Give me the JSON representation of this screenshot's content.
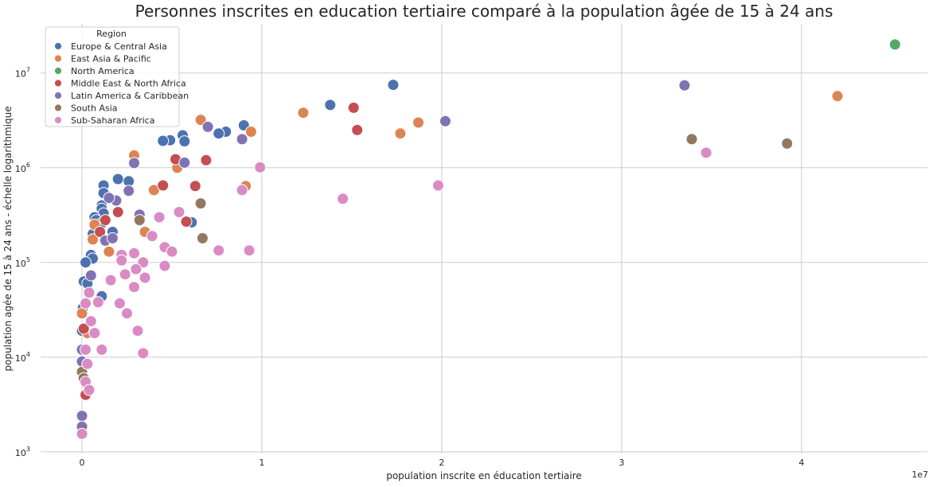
{
  "chart_data": {
    "type": "scatter",
    "title": "Personnes inscrites en education tertiaire comparé à la population âgée de 15 à 24 ans",
    "xlabel": "population inscrite en éducation tertiaire",
    "ylabel": "population agée de 15 à 24 ans - échelle logarithmique",
    "x_offset_label": "1e7",
    "x_scale": "linear",
    "y_scale": "log",
    "xlim": [
      -2300000,
      47000000
    ],
    "ylim": [
      960,
      33000000
    ],
    "grid": true,
    "legend": {
      "title": "Region",
      "placement": "top-left"
    },
    "x_ticks": [
      {
        "value": 0,
        "label": "0"
      },
      {
        "value": 10000000,
        "label": "1"
      },
      {
        "value": 20000000,
        "label": "2"
      },
      {
        "value": 30000000,
        "label": "3"
      },
      {
        "value": 40000000,
        "label": "4"
      }
    ],
    "y_ticks": [
      {
        "value": 1000,
        "base": "10",
        "exp": "3"
      },
      {
        "value": 10000,
        "base": "10",
        "exp": "4"
      },
      {
        "value": 100000,
        "base": "10",
        "exp": "5"
      },
      {
        "value": 1000000,
        "base": "10",
        "exp": "6"
      },
      {
        "value": 10000000,
        "base": "10",
        "exp": "7"
      }
    ],
    "series": [
      {
        "name": "Europe & Central Asia",
        "color": "#4c72b0",
        "points": [
          [
            17300000,
            7500000
          ],
          [
            13800000,
            4600000
          ],
          [
            9000000,
            2800000
          ],
          [
            8000000,
            2400000
          ],
          [
            7600000,
            2300000
          ],
          [
            5600000,
            2200000
          ],
          [
            5700000,
            1900000
          ],
          [
            4900000,
            1950000
          ],
          [
            4500000,
            1920000
          ],
          [
            2000000,
            760000
          ],
          [
            2600000,
            720000
          ],
          [
            1200000,
            650000
          ],
          [
            1200000,
            540000
          ],
          [
            1100000,
            400000
          ],
          [
            1100000,
            370000
          ],
          [
            1200000,
            330000
          ],
          [
            700000,
            300000
          ],
          [
            800000,
            280000
          ],
          [
            1100000,
            260000
          ],
          [
            6100000,
            265000
          ],
          [
            1700000,
            210000
          ],
          [
            600000,
            200000
          ],
          [
            500000,
            120000
          ],
          [
            600000,
            110000
          ],
          [
            200000,
            100000
          ],
          [
            100000,
            63000
          ],
          [
            300000,
            60000
          ],
          [
            1100000,
            44000
          ],
          [
            50000,
            33000
          ],
          [
            0,
            19000
          ]
        ]
      },
      {
        "name": "East Asia & Pacific",
        "color": "#dd8452",
        "points": [
          [
            42000000,
            5700000
          ],
          [
            12300000,
            3800000
          ],
          [
            18700000,
            3000000
          ],
          [
            17700000,
            2300000
          ],
          [
            6600000,
            3200000
          ],
          [
            9400000,
            2400000
          ],
          [
            2900000,
            1350000
          ],
          [
            5300000,
            1000000
          ],
          [
            4000000,
            580000
          ],
          [
            9100000,
            640000
          ],
          [
            3500000,
            210000
          ],
          [
            1500000,
            130000
          ],
          [
            700000,
            250000
          ],
          [
            600000,
            175000
          ],
          [
            0,
            29000
          ],
          [
            300000,
            18000
          ]
        ]
      },
      {
        "name": "North America",
        "color": "#55a868",
        "points": [
          [
            45200000,
            20000000
          ]
        ]
      },
      {
        "name": "Middle East & North Africa",
        "color": "#c44e52",
        "points": [
          [
            15100000,
            4300000
          ],
          [
            15300000,
            2500000
          ],
          [
            6900000,
            1200000
          ],
          [
            5200000,
            1230000
          ],
          [
            4500000,
            650000
          ],
          [
            6300000,
            640000
          ],
          [
            2000000,
            340000
          ],
          [
            5800000,
            270000
          ],
          [
            1300000,
            280000
          ],
          [
            1000000,
            210000
          ],
          [
            100000,
            20000
          ],
          [
            200000,
            4000
          ]
        ]
      },
      {
        "name": "Latin America & Caribbean",
        "color": "#8172b3",
        "points": [
          [
            33500000,
            7400000
          ],
          [
            20200000,
            3100000
          ],
          [
            7000000,
            2700000
          ],
          [
            8900000,
            2000000
          ],
          [
            5700000,
            1130000
          ],
          [
            2900000,
            1120000
          ],
          [
            2600000,
            570000
          ],
          [
            1900000,
            450000
          ],
          [
            1500000,
            480000
          ],
          [
            3200000,
            320000
          ],
          [
            1300000,
            170000
          ],
          [
            1700000,
            180000
          ],
          [
            500000,
            73000
          ],
          [
            0,
            12000
          ],
          [
            0,
            9000
          ],
          [
            0,
            2400
          ],
          [
            0,
            1850
          ]
        ]
      },
      {
        "name": "South Asia",
        "color": "#937860",
        "points": [
          [
            39200000,
            1800000
          ],
          [
            33900000,
            2000000
          ],
          [
            6600000,
            420000
          ],
          [
            3200000,
            280000
          ],
          [
            6700000,
            180000
          ],
          [
            0,
            7000
          ],
          [
            100000,
            6000
          ]
        ]
      },
      {
        "name": "Sub-Saharan Africa",
        "color": "#da8bc3",
        "points": [
          [
            34700000,
            1440000
          ],
          [
            19800000,
            650000
          ],
          [
            14500000,
            470000
          ],
          [
            9900000,
            1010000
          ],
          [
            8900000,
            580000
          ],
          [
            5400000,
            340000
          ],
          [
            4300000,
            300000
          ],
          [
            3900000,
            190000
          ],
          [
            4600000,
            145000
          ],
          [
            5000000,
            130000
          ],
          [
            7600000,
            134000
          ],
          [
            9300000,
            134000
          ],
          [
            2200000,
            120000
          ],
          [
            2900000,
            125000
          ],
          [
            3400000,
            100000
          ],
          [
            2200000,
            105000
          ],
          [
            4600000,
            92000
          ],
          [
            3000000,
            85000
          ],
          [
            2400000,
            75000
          ],
          [
            3500000,
            69000
          ],
          [
            1600000,
            65000
          ],
          [
            2900000,
            55000
          ],
          [
            400000,
            48000
          ],
          [
            200000,
            37000
          ],
          [
            900000,
            38000
          ],
          [
            2100000,
            37000
          ],
          [
            2500000,
            29000
          ],
          [
            500000,
            24000
          ],
          [
            3100000,
            19000
          ],
          [
            700000,
            18000
          ],
          [
            1100000,
            12000
          ],
          [
            3400000,
            11000
          ],
          [
            200000,
            12000
          ],
          [
            300000,
            8500
          ],
          [
            200000,
            5500
          ],
          [
            400000,
            4500
          ],
          [
            0,
            1550
          ]
        ]
      }
    ]
  }
}
